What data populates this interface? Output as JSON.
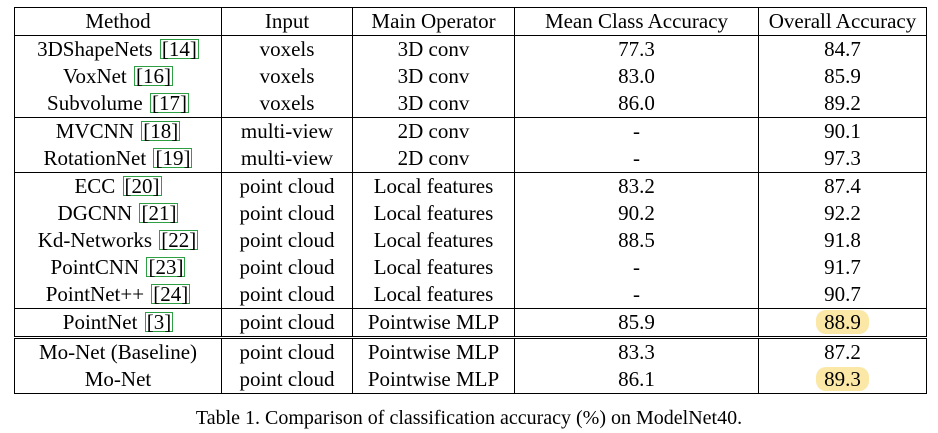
{
  "table": {
    "headers": [
      "Method",
      "Input",
      "Main Operator",
      "Mean Class Accuracy",
      "Overall Accuracy"
    ],
    "groups": [
      [
        {
          "method": "3DShapeNets",
          "ref": "14",
          "input": "voxels",
          "operator": "3D conv",
          "mca": "77.3",
          "oa": "84.7"
        },
        {
          "method": "VoxNet",
          "ref": "16",
          "input": "voxels",
          "operator": "3D conv",
          "mca": "83.0",
          "oa": "85.9"
        },
        {
          "method": "Subvolume",
          "ref": "17",
          "input": "voxels",
          "operator": "3D conv",
          "mca": "86.0",
          "oa": "89.2"
        }
      ],
      [
        {
          "method": "MVCNN",
          "ref": "18",
          "input": "multi-view",
          "operator": "2D conv",
          "mca": "-",
          "oa": "90.1"
        },
        {
          "method": "RotationNet",
          "ref": "19",
          "input": "multi-view",
          "operator": "2D conv",
          "mca": "-",
          "oa": "97.3"
        }
      ],
      [
        {
          "method": "ECC",
          "ref": "20",
          "input": "point cloud",
          "operator": "Local features",
          "mca": "83.2",
          "oa": "87.4"
        },
        {
          "method": "DGCNN",
          "ref": "21",
          "input": "point cloud",
          "operator": "Local features",
          "mca": "90.2",
          "oa": "92.2"
        },
        {
          "method": "Kd-Networks",
          "ref": "22",
          "input": "point cloud",
          "operator": "Local features",
          "mca": "88.5",
          "oa": "91.8"
        },
        {
          "method": "PointCNN",
          "ref": "23",
          "input": "point cloud",
          "operator": "Local features",
          "mca": "-",
          "oa": "91.7"
        },
        {
          "method": "PointNet++",
          "ref": "24",
          "input": "point cloud",
          "operator": "Local features",
          "mca": "-",
          "oa": "90.7"
        }
      ],
      [
        {
          "method": "PointNet",
          "ref": "3",
          "input": "point cloud",
          "operator": "Pointwise MLP",
          "mca": "85.9",
          "oa": "88.9",
          "highlight_oa": true
        }
      ],
      [
        {
          "method": "Mo-Net (Baseline)",
          "ref": "",
          "input": "point cloud",
          "operator": "Pointwise MLP",
          "mca": "83.3",
          "oa": "87.2"
        },
        {
          "method": "Mo-Net",
          "ref": "",
          "input": "point cloud",
          "operator": "Pointwise MLP",
          "mca": "86.1",
          "oa": "89.3",
          "highlight_oa": true
        }
      ]
    ],
    "double_line_before_group": 4
  },
  "caption": "Table 1. Comparison of classification accuracy (%) on ModelNet40.",
  "colors": {
    "highlight": "#fbe7a6",
    "ref_box": "#2ea043"
  }
}
